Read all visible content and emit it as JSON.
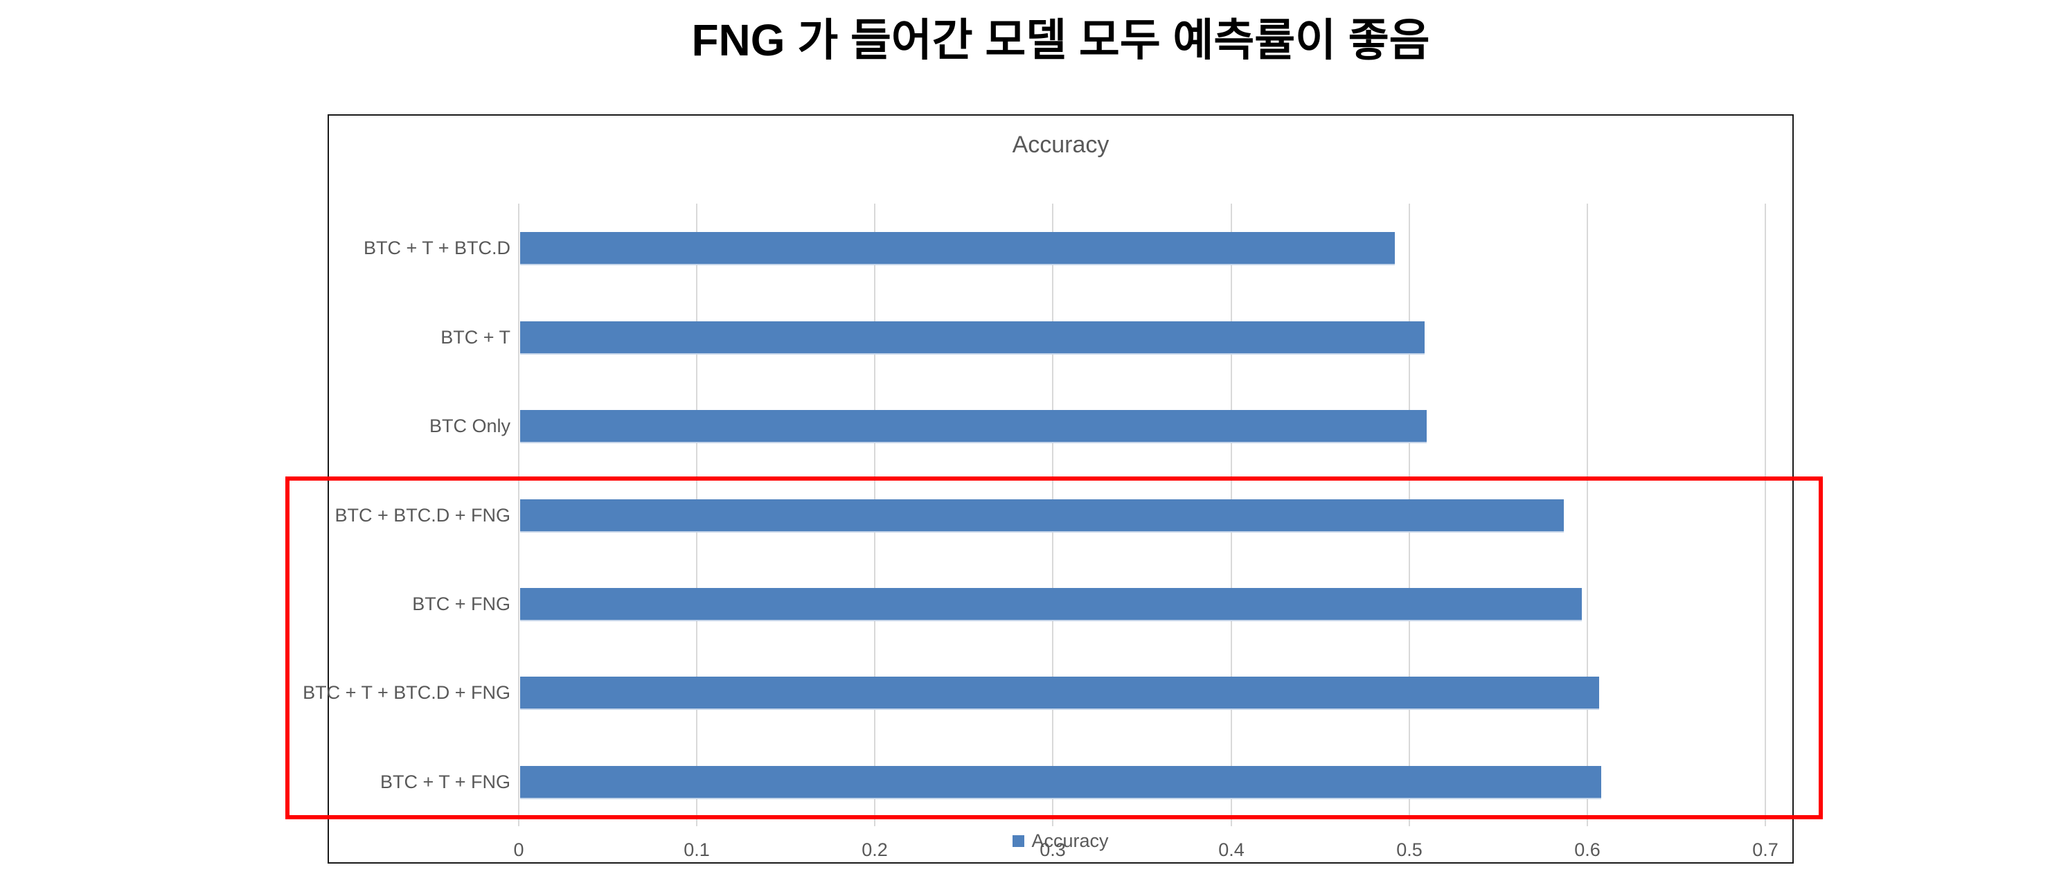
{
  "page_title": "FNG 가 들어간 모델 모두 예측률이 좋음",
  "chart_data": {
    "type": "bar",
    "orientation": "horizontal",
    "title": "Accuracy",
    "categories": [
      "BTC + T + BTC.D",
      "BTC + T",
      "BTC Only",
      "BTC + BTC.D + FNG",
      "BTC + FNG",
      "BTC + T + BTC.D + FNG",
      "BTC + T + FNG"
    ],
    "values": [
      0.491,
      0.508,
      0.509,
      0.586,
      0.596,
      0.606,
      0.607
    ],
    "series": [
      {
        "name": "Accuracy",
        "values": [
          0.491,
          0.508,
          0.509,
          0.586,
          0.596,
          0.606,
          0.607
        ]
      }
    ],
    "xlim": [
      0,
      0.7
    ],
    "x_tick_labels": [
      "0",
      "0.1",
      "0.2",
      "0.3",
      "0.4",
      "0.5",
      "0.6",
      "0.7"
    ],
    "x_tick_values": [
      0,
      0.1,
      0.2,
      0.3,
      0.4,
      0.5,
      0.6,
      0.7
    ],
    "grid": true,
    "legend": {
      "label": "Accuracy",
      "position": "bottom"
    },
    "colors": {
      "bar": "#4F81BD",
      "gridline": "#D9D9D9",
      "axis_text": "#595959",
      "chart_border": "#1A1A1A",
      "highlight": "#FF0000",
      "title_text": "#000000"
    }
  },
  "highlight_box": {
    "color": "#FF0000",
    "rows_enclosed": [
      "BTC + BTC.D + FNG",
      "BTC + FNG",
      "BTC + T + BTC.D + FNG",
      "BTC + T + FNG"
    ]
  }
}
